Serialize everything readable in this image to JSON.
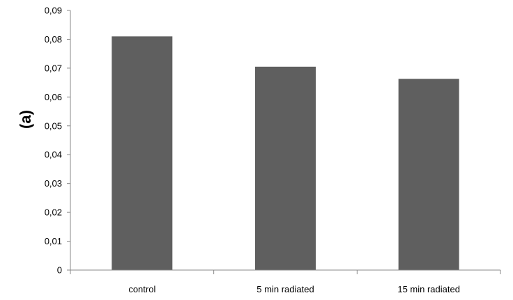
{
  "chart_data": {
    "type": "bar",
    "title": "",
    "xlabel": "",
    "ylabel": "(a)",
    "categories": [
      "control",
      "5 min radiated",
      "15 min radiated"
    ],
    "values": [
      0.081,
      0.0705,
      0.0663
    ],
    "ylim": [
      0,
      0.09
    ],
    "yticks": [
      0,
      0.01,
      0.02,
      0.03,
      0.04,
      0.05,
      0.06,
      0.07,
      0.08,
      0.09
    ],
    "ytick_labels": [
      "0",
      "0,01",
      "0,02",
      "0,03",
      "0,04",
      "0,05",
      "0,06",
      "0,07",
      "0,08",
      "0,09"
    ],
    "grid": false,
    "legend": "none",
    "bar_color": "#5f5f5f",
    "axis_color": "#888888"
  }
}
